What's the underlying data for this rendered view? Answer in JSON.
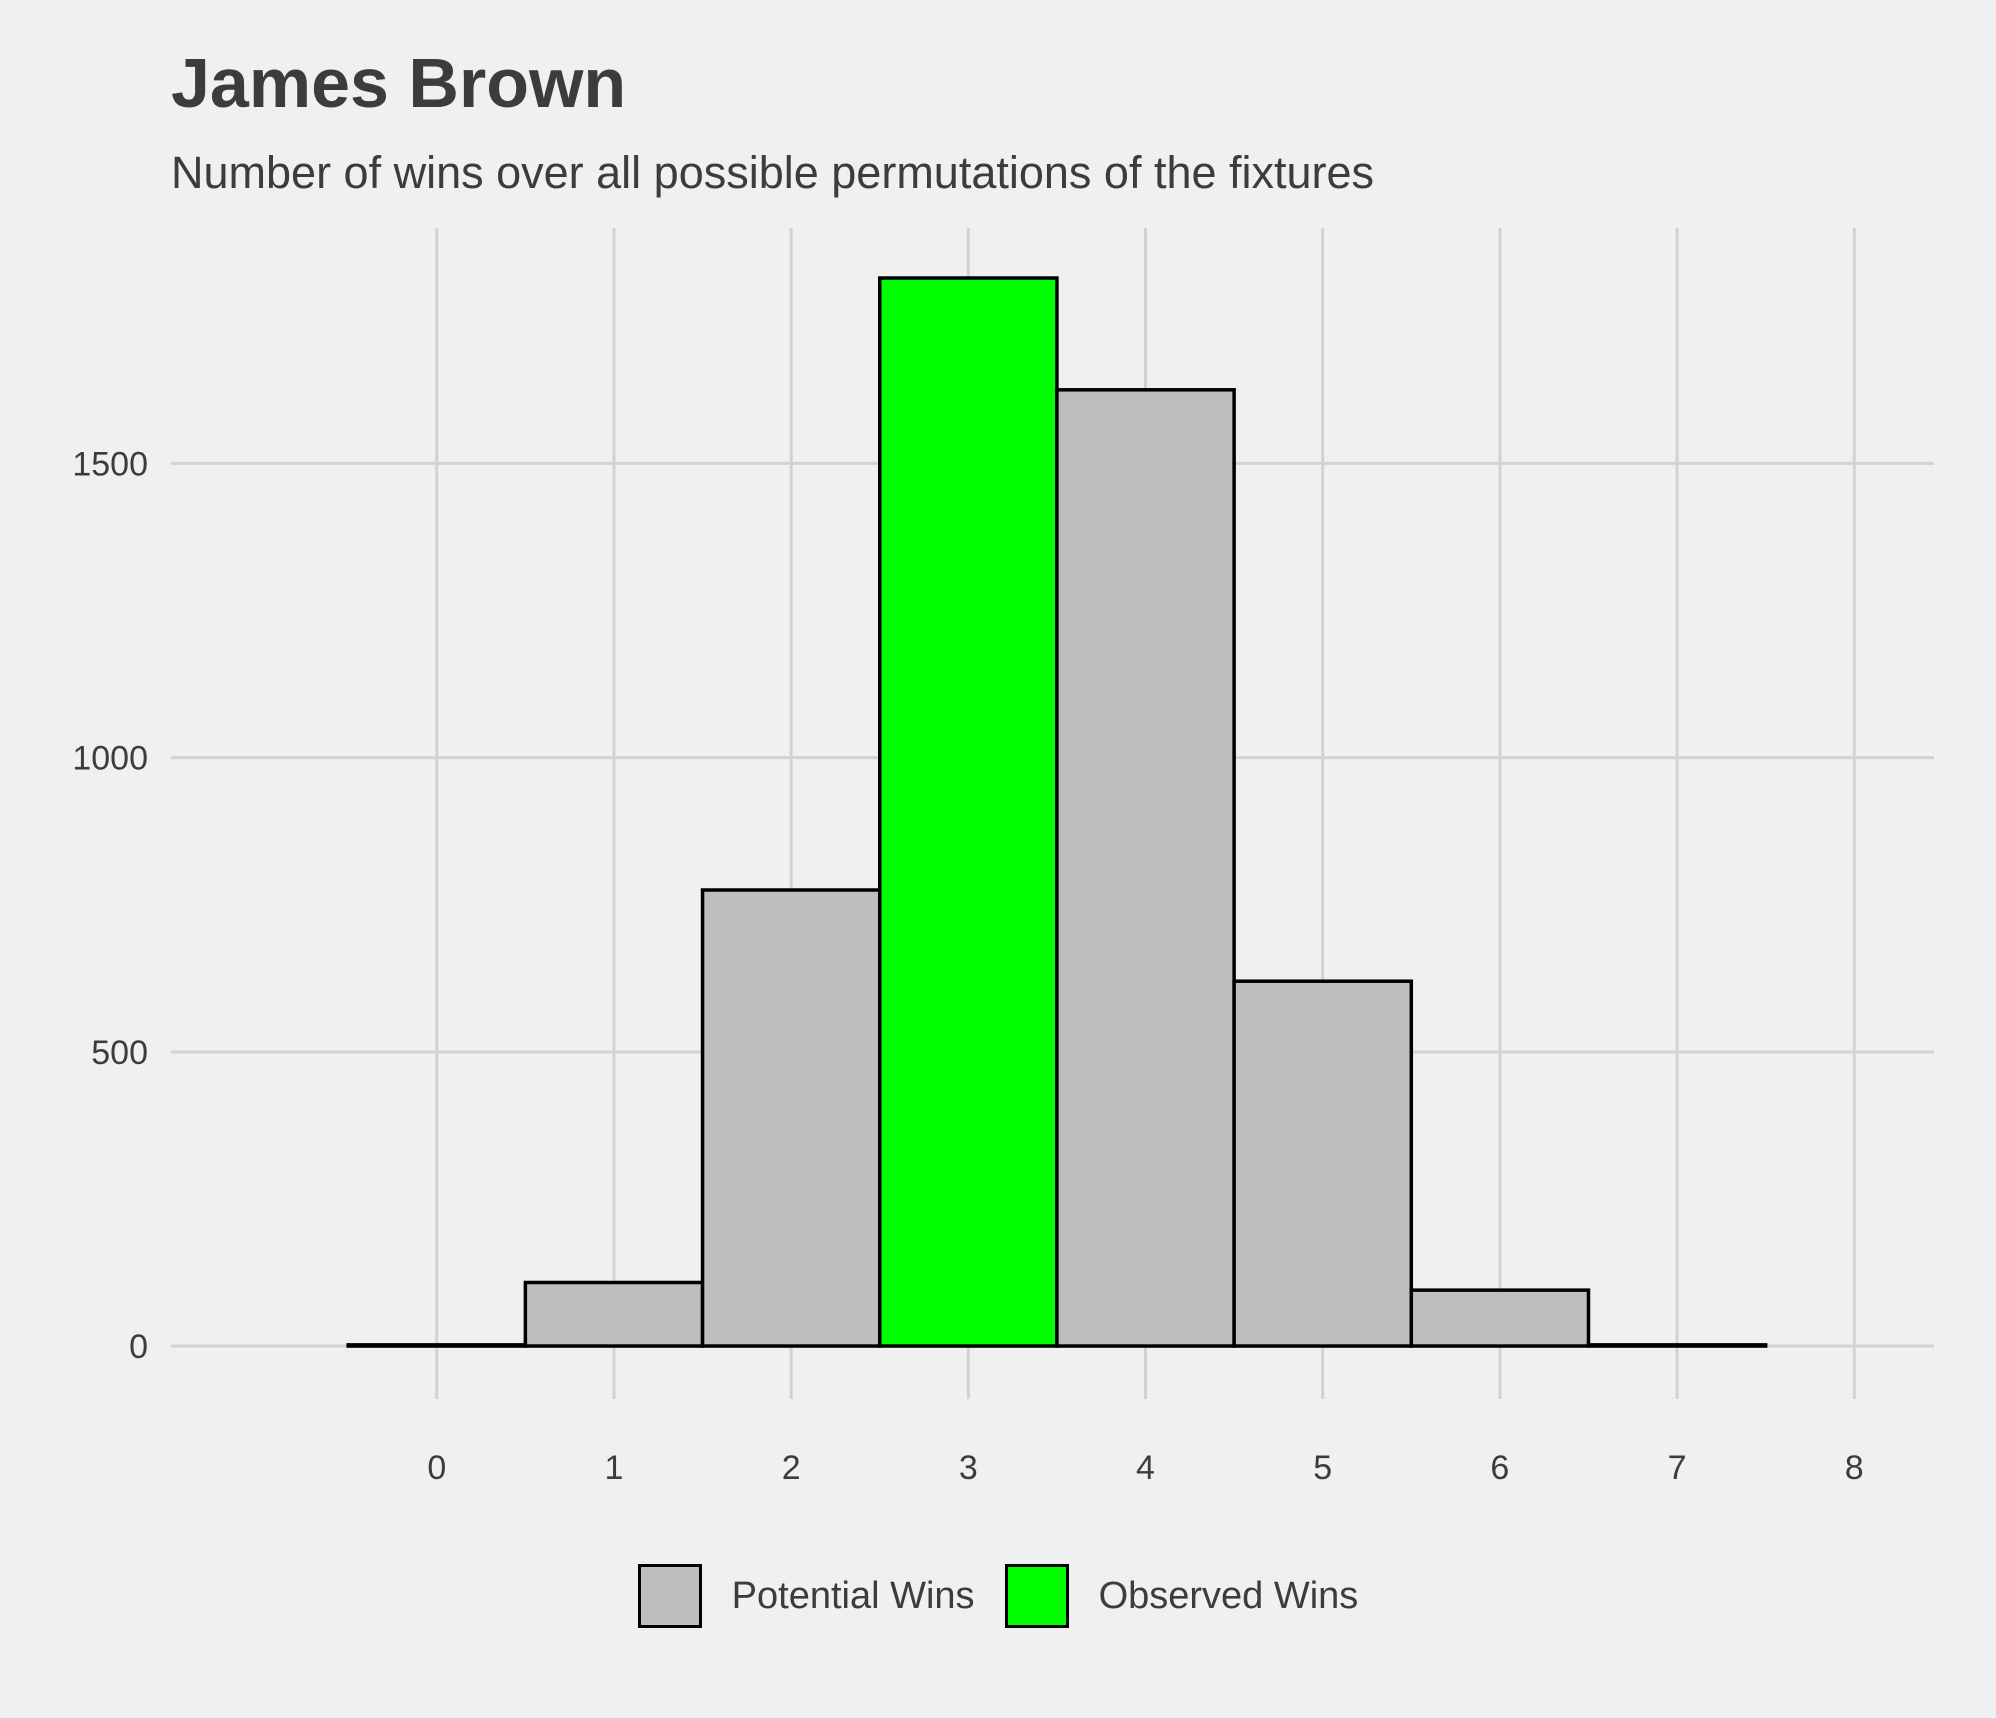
{
  "chart_data": {
    "type": "bar",
    "title": "James Brown",
    "subtitle": "Number of wins over all possible permutations of the fixtures",
    "xlabel": "",
    "ylabel": "",
    "x_ticks": [
      0,
      1,
      2,
      3,
      4,
      5,
      6,
      7,
      8
    ],
    "y_ticks": [
      0,
      500,
      1000,
      1500
    ],
    "xlim": [
      -1.5,
      8.45
    ],
    "ylim": [
      -90,
      1900
    ],
    "grid": true,
    "legend_position": "bottom",
    "bars": [
      {
        "x": 0,
        "value": 2,
        "series": "potential"
      },
      {
        "x": 1,
        "value": 108,
        "series": "potential"
      },
      {
        "x": 2,
        "value": 775,
        "series": "potential"
      },
      {
        "x": 3,
        "value": 1815,
        "series": "observed"
      },
      {
        "x": 4,
        "value": 1625,
        "series": "potential"
      },
      {
        "x": 5,
        "value": 620,
        "series": "potential"
      },
      {
        "x": 6,
        "value": 95,
        "series": "potential"
      },
      {
        "x": 7,
        "value": 2,
        "series": "potential"
      }
    ],
    "series": [
      {
        "key": "potential",
        "name": "Potential Wins",
        "color": "#bebebe"
      },
      {
        "key": "observed",
        "name": "Observed Wins",
        "color": "#00ff00"
      }
    ]
  },
  "colors": {
    "background": "#f0f0f0",
    "grid": "#d2d2d2",
    "bar_outline": "#000000",
    "text": "#3c3c3c"
  }
}
